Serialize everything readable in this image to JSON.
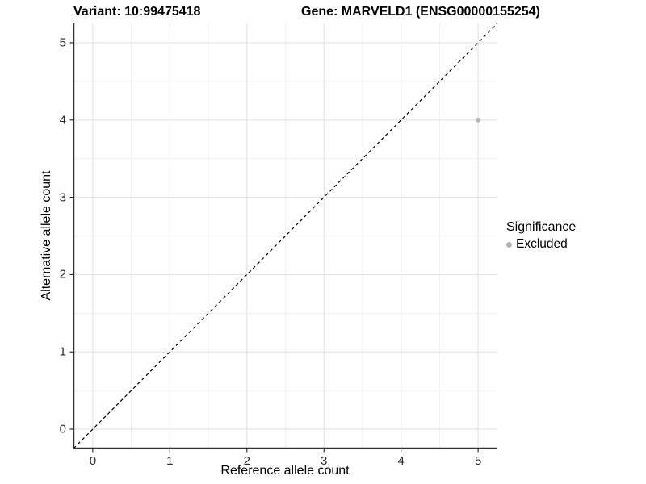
{
  "titles": {
    "left": "Variant: 10:99475418",
    "right": "Gene: MARVELD1 (ENSG00000155254)"
  },
  "legend": {
    "title": "Significance",
    "items": [
      {
        "label": "Excluded",
        "color": "#b5b5b5"
      }
    ]
  },
  "chart_data": {
    "type": "scatter",
    "title": "Variant: 10:99475418 | Gene: MARVELD1 (ENSG00000155254)",
    "xlabel": "Reference allele count",
    "ylabel": "Alternative allele count",
    "xlim": [
      -0.25,
      5.25
    ],
    "ylim": [
      -0.25,
      5.25
    ],
    "x_ticks": [
      0,
      1,
      2,
      3,
      4,
      5
    ],
    "y_ticks": [
      0,
      1,
      2,
      3,
      4,
      5
    ],
    "grid": "major+minor",
    "legend_position": "right",
    "series": [
      {
        "name": "Excluded",
        "color": "#b5b5b5",
        "points": [
          {
            "x": 5,
            "y": 4
          }
        ]
      }
    ],
    "reference_line": {
      "slope": 1,
      "intercept": 0,
      "style": "dashed",
      "color": "#000000"
    }
  },
  "colors": {
    "background": "#ffffff",
    "grid_major": "#e3e3e3",
    "grid_minor": "#f0f0f0",
    "axis_line": "#333333",
    "tick_mark": "#333333",
    "tick_label": "#2b2b2b",
    "point": "#b5b5b5"
  }
}
